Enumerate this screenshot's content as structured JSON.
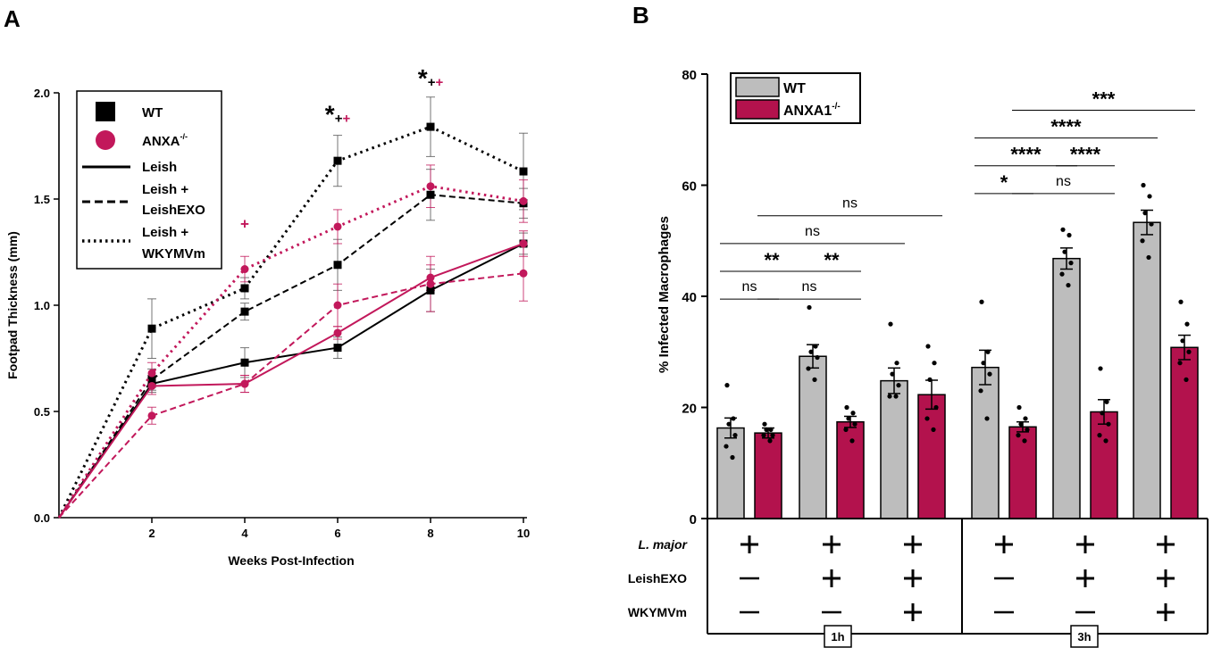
{
  "panels": {
    "a_label": "A",
    "b_label": "B"
  },
  "colors": {
    "wt": "#000000",
    "ko": "#c2185b",
    "wt_bar": "#bdbdbd",
    "ko_bar": "#b3124d"
  },
  "chart_data": [
    {
      "type": "line",
      "panel": "A",
      "title": "",
      "xlabel": "Weeks Post-Infection",
      "ylabel": "Footpad Thickness (mm)",
      "xlim": [
        0,
        10
      ],
      "ylim": [
        0,
        2.0
      ],
      "xticks": [
        "2",
        "4",
        "6",
        "8",
        "10"
      ],
      "yticks": [
        "0.0",
        "0.5",
        "1.0",
        "1.5",
        "2.0"
      ],
      "legend": {
        "genotypes": [
          {
            "label": "WT",
            "marker": "square"
          },
          {
            "label": "ANXA",
            "sup": "-/-",
            "marker": "circle"
          }
        ],
        "treatments": [
          {
            "line1": "Leish",
            "line2": "",
            "dash": "solid"
          },
          {
            "line1": "Leish +",
            "line2": "LeishEXO",
            "dash": "dashed"
          },
          {
            "line1": "Leish +",
            "line2": "WKYMVm",
            "dash": "dotted"
          }
        ]
      },
      "x": [
        0,
        2,
        4,
        6,
        8,
        10
      ],
      "series": [
        {
          "name": "WT Leish",
          "genotype": "WT",
          "dash": "solid",
          "values": [
            0,
            0.63,
            0.73,
            0.8,
            1.07,
            1.29
          ],
          "errors": [
            0,
            0.04,
            0.07,
            0.05,
            0.1,
            0.05
          ]
        },
        {
          "name": "WT Leish + LeishEXO",
          "genotype": "WT",
          "dash": "dashed",
          "values": [
            0,
            0.65,
            0.97,
            1.19,
            1.52,
            1.48
          ],
          "errors": [
            0,
            0.05,
            0.04,
            0.12,
            0.12,
            0.07
          ]
        },
        {
          "name": "WT Leish + WKYMVm",
          "genotype": "WT",
          "dash": "dotted",
          "values": [
            0,
            0.89,
            1.08,
            1.68,
            1.84,
            1.63
          ],
          "errors": [
            0,
            0.14,
            0.05,
            0.12,
            0.14,
            0.18
          ]
        },
        {
          "name": "ANXA-/- Leish",
          "genotype": "KO",
          "dash": "solid",
          "values": [
            0,
            0.62,
            0.63,
            0.87,
            1.13,
            1.29
          ],
          "errors": [
            0,
            0.04,
            0.04,
            0.03,
            0.06,
            0.06
          ]
        },
        {
          "name": "ANXA-/- Leish + LeishEXO",
          "genotype": "KO",
          "dash": "dashed",
          "values": [
            0,
            0.48,
            0.63,
            1.0,
            1.1,
            1.15
          ],
          "errors": [
            0,
            0.04,
            0.04,
            0.1,
            0.13,
            0.13
          ]
        },
        {
          "name": "ANXA-/- Leish + WKYMVm",
          "genotype": "KO",
          "dash": "dotted",
          "values": [
            0,
            0.68,
            1.17,
            1.37,
            1.56,
            1.49
          ],
          "errors": [
            0,
            0.05,
            0.06,
            0.08,
            0.1,
            0.1
          ]
        }
      ],
      "annotations": [
        {
          "x": 4,
          "y": 1.36,
          "parts": [
            {
              "text": "+",
              "color": "ko",
              "size": 17
            }
          ]
        },
        {
          "x": 6,
          "y": 1.86,
          "parts": [
            {
              "text": "*",
              "color": "wt",
              "size": 28
            },
            {
              "text": "+",
              "color": "wt",
              "size": 15
            },
            {
              "text": "+",
              "color": "ko",
              "size": 15
            }
          ]
        },
        {
          "x": 8,
          "y": 2.03,
          "parts": [
            {
              "text": "*",
              "color": "wt",
              "size": 28
            },
            {
              "text": "+",
              "color": "wt",
              "size": 15
            },
            {
              "text": "+",
              "color": "ko",
              "size": 15
            }
          ]
        }
      ]
    },
    {
      "type": "bar",
      "panel": "B",
      "title": "",
      "ylabel": "% Infected Macrophages",
      "ylim": [
        0,
        80
      ],
      "yticks": [
        "0",
        "20",
        "40",
        "60",
        "80"
      ],
      "legend": [
        {
          "label": "WT",
          "sup": ""
        },
        {
          "label": "ANXA1",
          "sup": "-/-"
        }
      ],
      "groups": [
        {
          "wt": 16.3,
          "wt_err": 1.8,
          "ko": 15.4,
          "ko_err": 0.9,
          "wt_points": [
            24,
            18,
            17,
            15,
            13,
            11
          ],
          "ko_points": [
            17,
            16,
            16,
            15,
            15,
            14
          ]
        },
        {
          "wt": 29.2,
          "wt_err": 2.1,
          "ko": 17.4,
          "ko_err": 1.0,
          "wt_points": [
            38,
            31,
            30,
            29,
            27,
            25
          ],
          "ko_points": [
            20,
            19,
            18,
            17,
            16,
            14
          ]
        },
        {
          "wt": 24.8,
          "wt_err": 2.3,
          "ko": 22.3,
          "ko_err": 2.6,
          "wt_points": [
            35,
            28,
            26,
            24,
            22,
            22
          ],
          "ko_points": [
            31,
            28,
            25,
            20,
            18,
            16
          ]
        },
        {
          "wt": 27.2,
          "wt_err": 3.1,
          "ko": 16.5,
          "ko_err": 0.9,
          "wt_points": [
            39,
            30,
            28,
            26,
            23,
            18
          ],
          "ko_points": [
            20,
            18,
            17,
            16,
            15,
            14
          ]
        },
        {
          "wt": 46.8,
          "wt_err": 1.9,
          "ko": 19.2,
          "ko_err": 2.2,
          "wt_points": [
            52,
            51,
            48,
            46,
            44,
            42
          ],
          "ko_points": [
            27,
            21,
            19,
            17,
            15,
            14
          ]
        },
        {
          "wt": 53.3,
          "wt_err": 2.2,
          "ko": 30.8,
          "ko_err": 2.2,
          "wt_points": [
            60,
            58,
            55,
            53,
            50,
            47
          ],
          "ko_points": [
            39,
            35,
            32,
            30,
            28,
            25
          ]
        }
      ],
      "comparisons": [
        {
          "label": "ns",
          "y1": 39.5,
          "y2": 39.5,
          "x1": [
            0,
            "wt"
          ],
          "x2": [
            0,
            "ko"
          ]
        },
        {
          "label": "ns",
          "y1": 39.5,
          "y2": 39.5,
          "x1": [
            0,
            "ko"
          ],
          "x2": [
            1,
            "ko"
          ]
        },
        {
          "label": "**",
          "y1": 44.5,
          "y2": 44.5,
          "x1": [
            0,
            "wt"
          ],
          "x2": [
            1,
            "wt"
          ]
        },
        {
          "label": "**",
          "y1": 44.5,
          "y2": 44.5,
          "x1": [
            1,
            "wt"
          ],
          "x2": [
            1,
            "ko"
          ]
        },
        {
          "label": "ns",
          "y1": 49.5,
          "y2": 49.5,
          "x1": [
            0,
            "wt"
          ],
          "x2": [
            2,
            "wt"
          ]
        },
        {
          "label": "ns",
          "y1": 54.5,
          "y2": 54.5,
          "x1": [
            0,
            "ko"
          ],
          "x2": [
            2,
            "ko"
          ]
        },
        {
          "label": "*",
          "y1": 58.5,
          "y2": 58.5,
          "x1": [
            3,
            "wt"
          ],
          "x2": [
            3,
            "ko"
          ]
        },
        {
          "label": "ns",
          "y1": 58.5,
          "y2": 58.5,
          "x1": [
            3,
            "ko"
          ],
          "x2": [
            4,
            "ko"
          ]
        },
        {
          "label": "****",
          "y1": 63.5,
          "y2": 63.5,
          "x1": [
            3,
            "wt"
          ],
          "x2": [
            4,
            "wt"
          ]
        },
        {
          "label": "****",
          "y1": 63.5,
          "y2": 63.5,
          "x1": [
            4,
            "wt"
          ],
          "x2": [
            4,
            "ko"
          ]
        },
        {
          "label": "****",
          "y1": 68.5,
          "y2": 68.5,
          "x1": [
            3,
            "wt"
          ],
          "x2": [
            5,
            "wt"
          ]
        },
        {
          "label": "***",
          "y1": 73.5,
          "y2": 73.5,
          "x1": [
            3,
            "ko"
          ],
          "x2": [
            5,
            "ko"
          ]
        }
      ],
      "conditions": {
        "rows": [
          {
            "label": "L. major",
            "italic": true,
            "signs": [
              "+",
              "+",
              "+",
              "+",
              "+",
              "+"
            ]
          },
          {
            "label": "LeishEXO",
            "italic": false,
            "signs": [
              "−",
              "+",
              "+",
              "−",
              "+",
              "+"
            ]
          },
          {
            "label": "WKYMVm",
            "italic": false,
            "signs": [
              "−",
              "−",
              "+",
              "−",
              "−",
              "+"
            ]
          }
        ],
        "timepoints": [
          "1h",
          "3h"
        ]
      }
    }
  ]
}
